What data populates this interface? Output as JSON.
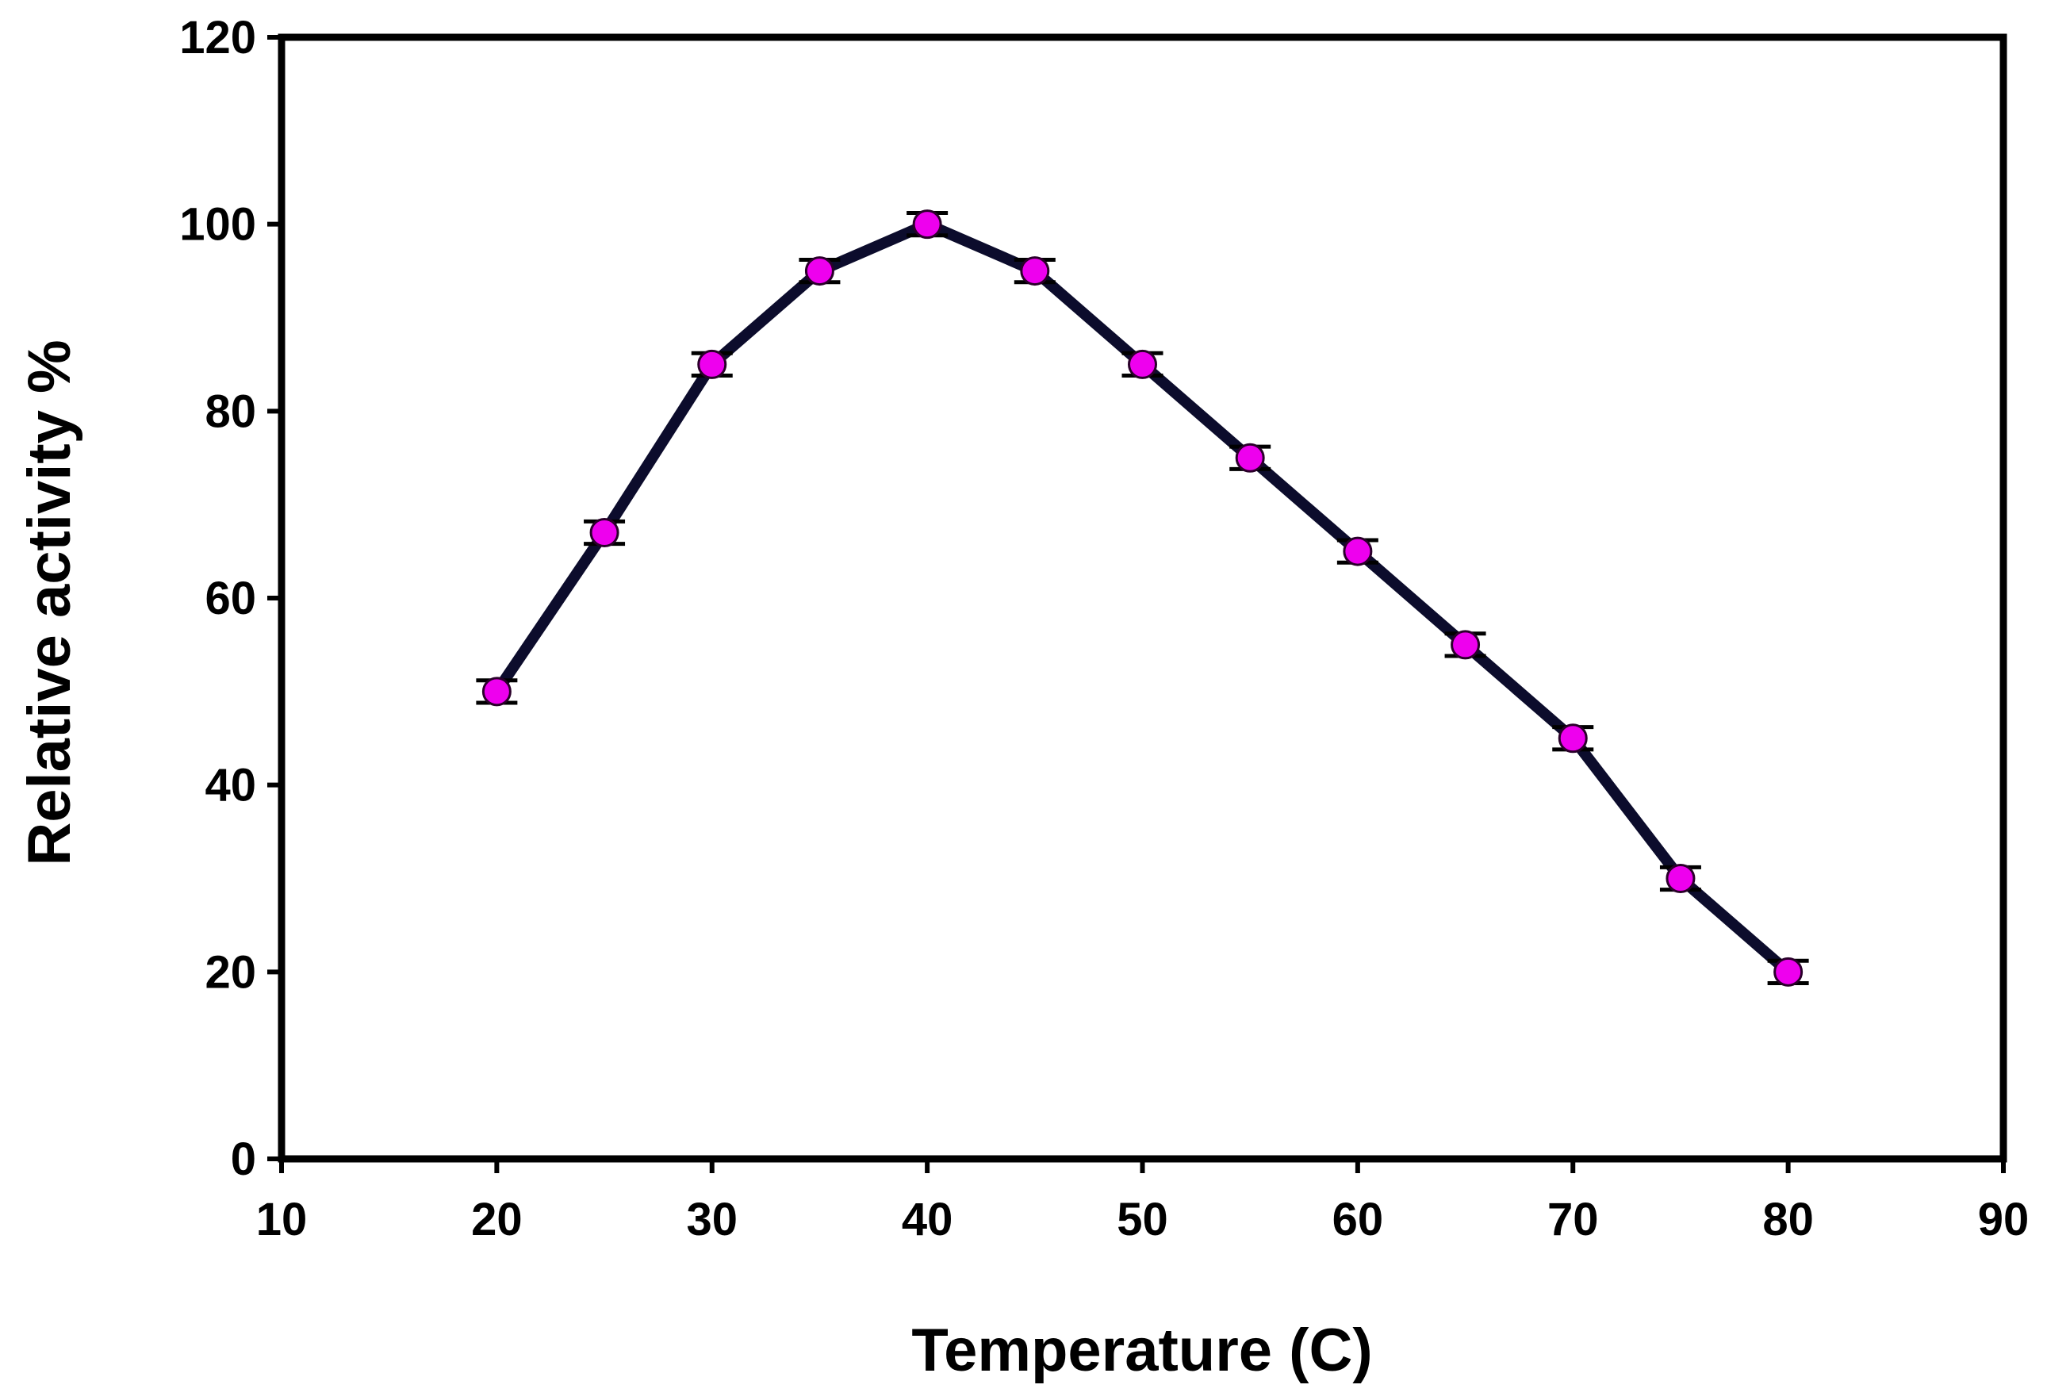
{
  "chart_data": {
    "type": "line",
    "title": "",
    "xlabel": "Temperature (C)",
    "ylabel": "Relative activity %",
    "xlim": [
      10,
      90
    ],
    "ylim": [
      0,
      120
    ],
    "xticks": [
      10,
      20,
      30,
      40,
      50,
      60,
      70,
      80,
      90
    ],
    "yticks": [
      0,
      20,
      40,
      60,
      80,
      100,
      120
    ],
    "x_tick_labels": [
      "10",
      "20",
      "30",
      "40",
      "50",
      "60",
      "70",
      "80",
      "90"
    ],
    "y_tick_labels": [
      "0",
      "20",
      "40",
      "60",
      "80",
      "100",
      "120"
    ],
    "grid": false,
    "series": [
      {
        "name": "Relative activity",
        "x": [
          20,
          25,
          30,
          35,
          40,
          45,
          50,
          55,
          60,
          65,
          70,
          75,
          80
        ],
        "y": [
          50,
          67,
          85,
          95,
          100,
          95,
          85,
          75,
          65,
          55,
          45,
          30,
          20
        ],
        "error": [
          1.2,
          1.2,
          1.2,
          1.2,
          1.2,
          1.2,
          1.2,
          1.2,
          1.2,
          1.2,
          1.2,
          1.2,
          1.2
        ],
        "line_color": "#0c0c2c",
        "marker_color": "#ee00ee"
      }
    ]
  }
}
